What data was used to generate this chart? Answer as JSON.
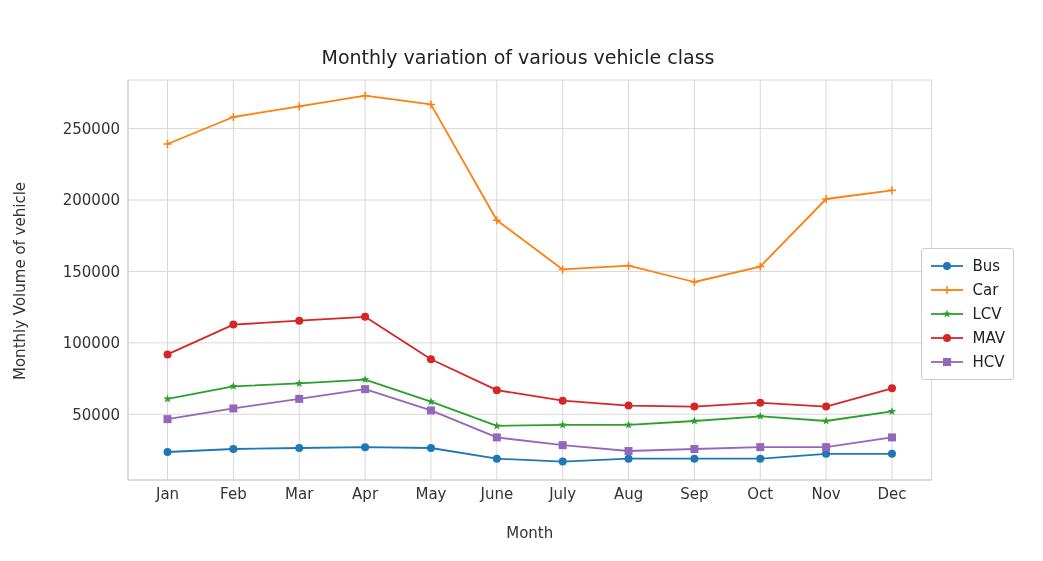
{
  "chart_data": {
    "type": "line",
    "title": "Monthly variation of various vehicle class",
    "xlabel": "Month",
    "ylabel": "Monthly Volume of vehicle",
    "categories": [
      "Jan",
      "Feb",
      "Mar",
      "Apr",
      "May",
      "June",
      "July",
      "Aug",
      "Sep",
      "Oct",
      "Nov",
      "Dec"
    ],
    "ylim": [
      4000,
      284000
    ],
    "yticks": [
      50000,
      100000,
      150000,
      200000,
      250000
    ],
    "grid": true,
    "legend": "right",
    "line_style": "solid",
    "series": [
      {
        "name": "Bus",
        "color": "#1f77b4",
        "marker": "circle",
        "values": [
          23600,
          25700,
          26400,
          27000,
          26400,
          18900,
          16900,
          18900,
          18900,
          18900,
          22300,
          22300
        ]
      },
      {
        "name": "Car",
        "color": "#ff7f0e",
        "marker": "cross",
        "values": [
          239200,
          258100,
          265500,
          273000,
          266900,
          185800,
          151400,
          154000,
          142600,
          153400,
          200700,
          206800
        ]
      },
      {
        "name": "LCV",
        "color": "#2ca02c",
        "marker": "star",
        "values": [
          60800,
          69600,
          71600,
          74300,
          58800,
          41900,
          42600,
          42600,
          45300,
          48600,
          45300,
          52000
        ]
      },
      {
        "name": "MAV",
        "color": "#d62728",
        "marker": "circle",
        "values": [
          91900,
          112800,
          115500,
          118200,
          88500,
          66900,
          59500,
          56100,
          55400,
          58100,
          55400,
          68200
        ]
      },
      {
        "name": "HCV",
        "color": "#9467bd",
        "marker": "square",
        "values": [
          46600,
          54100,
          60800,
          67600,
          52700,
          33800,
          28400,
          24300,
          25700,
          27000,
          27000,
          33800
        ]
      }
    ]
  }
}
